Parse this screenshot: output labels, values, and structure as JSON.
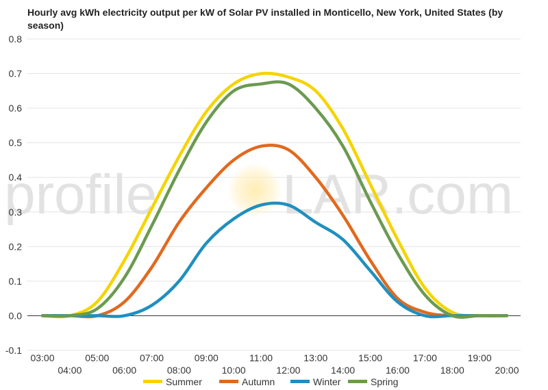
{
  "chart_data": {
    "type": "line",
    "title": "Hourly avg kWh electricity output per kW of Solar PV installed in Monticello, New York, United States (by season)",
    "xlabel": "",
    "ylabel": "",
    "x": [
      "03:00",
      "04:00",
      "05:00",
      "06:00",
      "07:00",
      "08:00",
      "09:00",
      "10:00",
      "11:00",
      "12:00",
      "13:00",
      "14:00",
      "15:00",
      "16:00",
      "17:00",
      "18:00",
      "19:00",
      "20:00"
    ],
    "ylim": [
      -0.1,
      0.8
    ],
    "yticks": [
      "0.8",
      "0.7",
      "0.6",
      "0.5",
      "0.4",
      "0.3",
      "0.2",
      "0.1",
      "0.0",
      "-0.1"
    ],
    "grid": true,
    "legend_position": "bottom",
    "series": [
      {
        "name": "Summer",
        "color": "#f5d400",
        "values": [
          0.0,
          0.0,
          0.04,
          0.16,
          0.31,
          0.46,
          0.59,
          0.67,
          0.7,
          0.69,
          0.65,
          0.54,
          0.38,
          0.22,
          0.08,
          0.01,
          0.0,
          0.0
        ]
      },
      {
        "name": "Autumn",
        "color": "#e1691e",
        "values": [
          0.0,
          0.0,
          0.0,
          0.04,
          0.14,
          0.27,
          0.37,
          0.45,
          0.49,
          0.48,
          0.4,
          0.29,
          0.16,
          0.05,
          0.01,
          0.0,
          0.0,
          0.0
        ]
      },
      {
        "name": "Winter",
        "color": "#1f8fbf",
        "values": [
          0.0,
          0.0,
          0.0,
          0.0,
          0.03,
          0.1,
          0.21,
          0.28,
          0.32,
          0.32,
          0.27,
          0.22,
          0.13,
          0.04,
          0.0,
          0.0,
          0.0,
          0.0
        ]
      },
      {
        "name": "Spring",
        "color": "#6b9a50",
        "values": [
          0.0,
          0.0,
          0.02,
          0.11,
          0.26,
          0.42,
          0.56,
          0.65,
          0.67,
          0.67,
          0.6,
          0.49,
          0.33,
          0.18,
          0.06,
          0.0,
          0.0,
          0.0
        ]
      }
    ]
  },
  "watermark": {
    "text_before": "profile",
    "text_after": "LAR.com"
  }
}
